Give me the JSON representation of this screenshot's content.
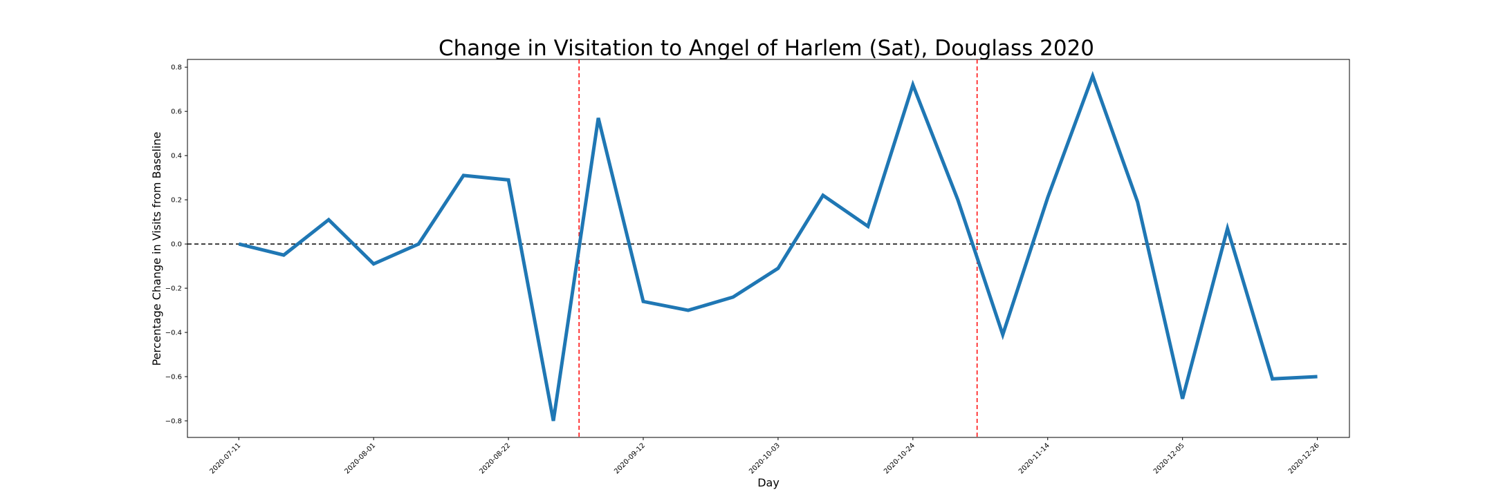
{
  "chart_data": {
    "type": "line",
    "title": "Change in Visitation to Angel of Harlem (Sat), Douglass 2020",
    "xlabel": "Day",
    "ylabel": "Percentage Change in Visits from Baseline",
    "x": [
      "2020-07-11",
      "2020-07-18",
      "2020-07-25",
      "2020-08-01",
      "2020-08-08",
      "2020-08-15",
      "2020-08-22",
      "2020-08-29",
      "2020-09-05",
      "2020-09-12",
      "2020-09-19",
      "2020-09-26",
      "2020-10-03",
      "2020-10-10",
      "2020-10-17",
      "2020-10-24",
      "2020-10-31",
      "2020-11-07",
      "2020-11-14",
      "2020-11-21",
      "2020-11-28",
      "2020-12-05",
      "2020-12-12",
      "2020-12-19",
      "2020-12-26"
    ],
    "series": [
      {
        "values": [
          0.0,
          -0.05,
          0.11,
          -0.09,
          0.0,
          0.31,
          0.29,
          -0.8,
          0.57,
          -0.26,
          -0.3,
          -0.24,
          -0.11,
          0.22,
          0.08,
          0.72,
          0.2,
          -0.41,
          0.21,
          0.76,
          0.19,
          -0.7,
          0.07,
          -0.61,
          -0.6
        ],
        "color": "#1f77b4"
      }
    ],
    "x_ticks": [
      "2020-07-11",
      "2020-08-01",
      "2020-08-22",
      "2020-09-12",
      "2020-10-03",
      "2020-10-24",
      "2020-11-14",
      "2020-12-05",
      "2020-12-26"
    ],
    "y_ticks": [
      0.8,
      0.6,
      0.4,
      0.2,
      0.0,
      -0.2,
      -0.4,
      -0.6,
      -0.8
    ],
    "y_tick_labels": [
      "0.8",
      "0.6",
      "0.4",
      "0.2",
      "0.0",
      "−0.2",
      "−0.4",
      "−0.6",
      "−0.8"
    ],
    "ylim": [
      -0.875,
      0.835
    ],
    "xlim": [
      "2020-07-03",
      "2020-12-31"
    ],
    "reference_lines": [
      {
        "orientation": "horizontal",
        "value": 0.0,
        "color": "#000000",
        "style": "dashed"
      },
      {
        "orientation": "vertical",
        "value": "2020-09-02",
        "color": "#ff0000",
        "style": "dashed"
      },
      {
        "orientation": "vertical",
        "value": "2020-11-03",
        "color": "#ff0000",
        "style": "dashed"
      }
    ],
    "grid": false,
    "legend": "none"
  }
}
